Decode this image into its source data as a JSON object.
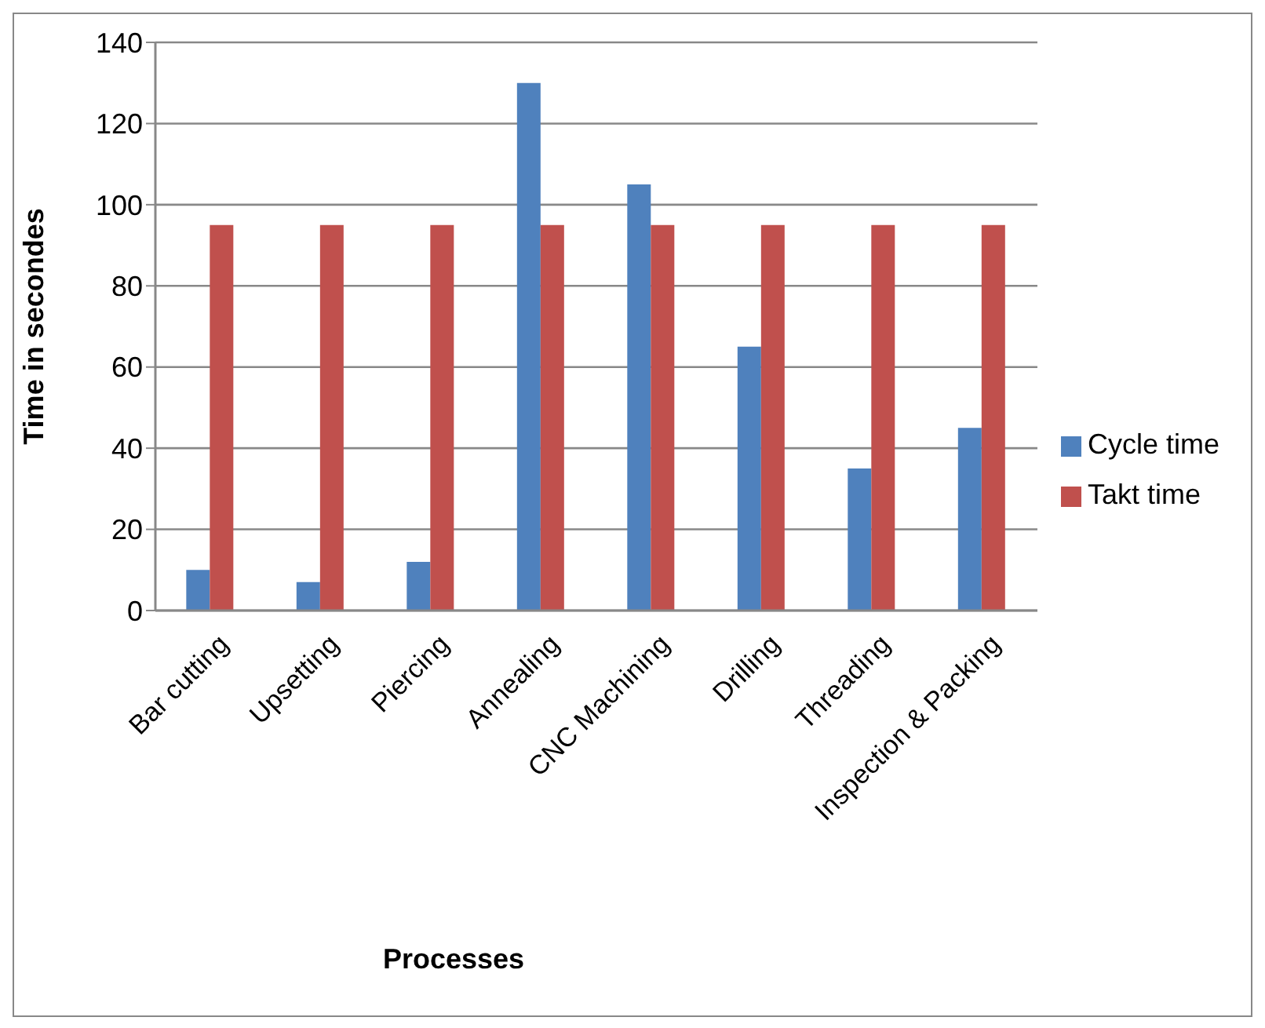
{
  "chart_data": {
    "type": "bar",
    "xlabel": "Processes",
    "ylabel": "Time in secondes",
    "categories": [
      "Bar cutting",
      "Upsetting",
      "Piercing",
      "Annealing",
      "CNC Machining",
      "Drilling",
      "Threading",
      "Inspection & Packing"
    ],
    "series": [
      {
        "name": "Cycle time",
        "color": "#4f81bd",
        "values": [
          10,
          7,
          12,
          130,
          105,
          65,
          35,
          45
        ]
      },
      {
        "name": "Takt time",
        "color": "#c0504d",
        "values": [
          95,
          95,
          95,
          95,
          95,
          95,
          95,
          95
        ]
      }
    ],
    "ylim": [
      0,
      140
    ],
    "yticks": [
      0,
      20,
      40,
      60,
      80,
      100,
      120,
      140
    ],
    "grid": "y",
    "legend": "right"
  }
}
